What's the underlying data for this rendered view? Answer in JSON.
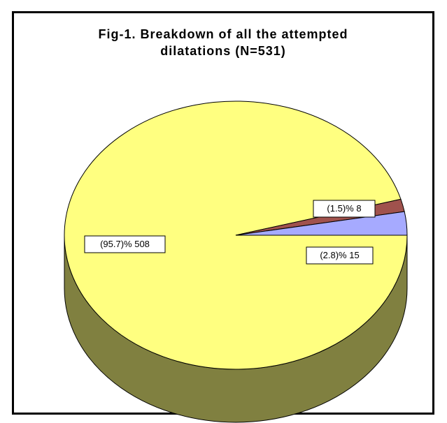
{
  "chart_data": {
    "type": "pie",
    "title_line1": "Fig-1. Breakdown of all the attempted",
    "title_line2": "dilatations (N=531)",
    "slices": [
      {
        "label": "(95.7)% 508",
        "value": 508,
        "percent": 95.7,
        "color": "#FFFF80",
        "side_color": "#808040"
      },
      {
        "label": "(1.5)% 8",
        "value": 8,
        "percent": 1.5,
        "color": "#A0524D",
        "side_color": "#502926"
      },
      {
        "label": "(2.8)% 15",
        "value": 15,
        "percent": 2.8,
        "color": "#A6AAFF",
        "side_color": "#5355A0"
      }
    ],
    "legend": "none",
    "style": "3d"
  }
}
